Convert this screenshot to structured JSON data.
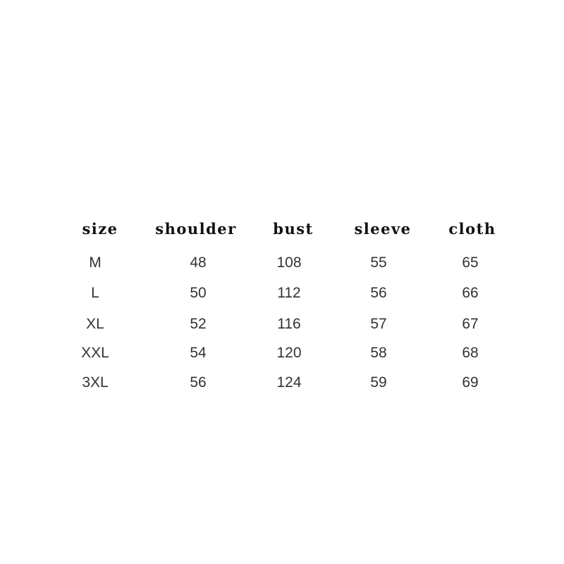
{
  "table": {
    "headers": [
      "size",
      "shoulder",
      "bust",
      "sleeve",
      "cloth"
    ],
    "rows": [
      [
        "M",
        "48",
        "108",
        "55",
        "65"
      ],
      [
        "L",
        "50",
        "112",
        "56",
        "66"
      ],
      [
        "XL",
        "52",
        "116",
        "57",
        "67"
      ],
      [
        "XXL",
        "54",
        "120",
        "58",
        "68"
      ],
      [
        "3XL",
        "56",
        "124",
        "59",
        "69"
      ]
    ]
  }
}
